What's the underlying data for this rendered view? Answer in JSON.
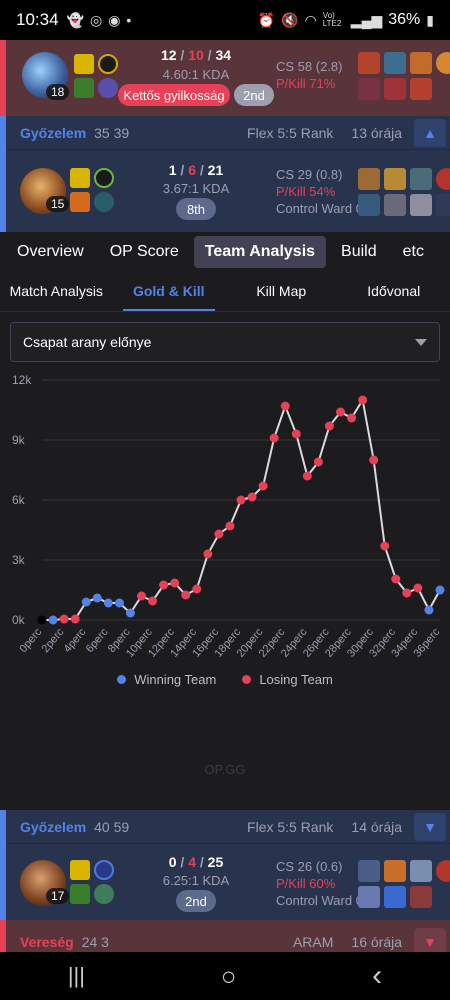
{
  "status_bar": {
    "time": "10:34",
    "battery": "36%",
    "network": "Vo) LTE2"
  },
  "card1": {
    "champion_level": "18",
    "kda": {
      "kills": "12",
      "deaths": "10",
      "assists": "34"
    },
    "ratio": "4.60:1 KDA",
    "badge": "Kettős gyilkosság",
    "place": "2nd",
    "cs": "CS 58 (2.8)",
    "pkill": "P/Kill 71%"
  },
  "card2": {
    "result": "Győzelem",
    "score": "35 39",
    "mode": "Flex 5:5 Rank",
    "ago": "13 órája",
    "champion_level": "15",
    "kda": {
      "kills": "1",
      "deaths": "6",
      "assists": "21"
    },
    "ratio": "3.67:1 KDA",
    "place": "8th",
    "cs": "CS 29 (0.8)",
    "pkill": "P/Kill 54%",
    "ward": "Control Ward 0"
  },
  "tabs_primary": [
    "Overview",
    "OP Score",
    "Team Analysis",
    "Build",
    "etc"
  ],
  "tabs_secondary": [
    "Match Analysis",
    "Gold & Kill",
    "Kill Map",
    "Idővonal"
  ],
  "select_value": "Csapat arany előnye",
  "chart_data": {
    "type": "line",
    "title": "",
    "x": [
      "0perc",
      "1perc",
      "2perc",
      "3perc",
      "4perc",
      "5perc",
      "6perc",
      "7perc",
      "8perc",
      "9perc",
      "10perc",
      "11perc",
      "12perc",
      "13perc",
      "14perc",
      "15perc",
      "16perc",
      "17perc",
      "18perc",
      "19perc",
      "20perc",
      "21perc",
      "22perc",
      "23perc",
      "24perc",
      "25perc",
      "26perc",
      "27perc",
      "28perc",
      "29perc",
      "30perc",
      "31perc",
      "32perc",
      "33perc",
      "34perc",
      "35perc",
      "36perc"
    ],
    "x_tick_labels": [
      "0perc",
      "2perc",
      "4perc",
      "6perc",
      "8perc",
      "10perc",
      "12perc",
      "14perc",
      "16perc",
      "18perc",
      "20perc",
      "22perc",
      "24perc",
      "26perc",
      "28perc",
      "30perc",
      "32perc",
      "34perc",
      "36perc"
    ],
    "values": [
      0,
      0,
      50,
      50,
      900,
      1100,
      850,
      850,
      350,
      1200,
      950,
      1750,
      1850,
      1250,
      1550,
      3300,
      4300,
      4700,
      6000,
      6150,
      6700,
      9100,
      10700,
      9300,
      7200,
      7900,
      9700,
      10400,
      10100,
      11000,
      8000,
      3700,
      2050,
      1350,
      1600,
      500,
      1500
    ],
    "leader": [
      "none",
      "winning",
      "losing",
      "losing",
      "winning",
      "winning",
      "winning",
      "winning",
      "winning",
      "losing",
      "losing",
      "losing",
      "losing",
      "losing",
      "losing",
      "losing",
      "losing",
      "losing",
      "losing",
      "losing",
      "losing",
      "losing",
      "losing",
      "losing",
      "losing",
      "losing",
      "losing",
      "losing",
      "losing",
      "losing",
      "losing",
      "losing",
      "losing",
      "losing",
      "losing",
      "winning",
      "winning"
    ],
    "y_ticks": [
      "0k",
      "3k",
      "6k",
      "9k",
      "12k"
    ],
    "ylim": [
      0,
      12000
    ],
    "grid": true,
    "legend": [
      "Winning Team",
      "Losing Team"
    ],
    "legend_position": "bottom",
    "colors": {
      "winning": "#5383e8",
      "losing": "#e84057",
      "line": "#d9d9e0",
      "neutral": "#000000"
    }
  },
  "watermark": "OP.GG",
  "card3": {
    "result": "Győzelem",
    "score": "40 59",
    "mode": "Flex 5:5 Rank",
    "ago": "14 órája",
    "champion_level": "17",
    "kda": {
      "kills": "0",
      "deaths": "4",
      "assists": "25"
    },
    "ratio": "6.25:1 KDA",
    "place": "2nd",
    "cs": "CS 26 (0.6)",
    "pkill": "P/Kill 60%",
    "ward": "Control Ward 0"
  },
  "card4": {
    "result": "Vereség",
    "score": "24 3",
    "mode": "ARAM",
    "ago": "16 órája"
  },
  "nav": {
    "recents": "|||",
    "home": "○",
    "back": "‹"
  }
}
